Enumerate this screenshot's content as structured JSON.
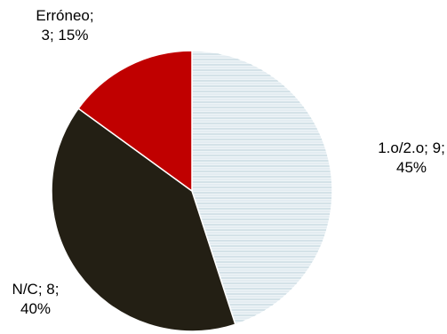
{
  "chart_data": {
    "type": "pie",
    "title": "",
    "start_angle_deg": 0,
    "direction": "clockwise",
    "slices": [
      {
        "category": "1.o/2.o",
        "value": 9,
        "percent": 45,
        "label_lines": [
          "1.o/2.o; 9;",
          "45%"
        ],
        "color": "#e6f0f4",
        "pattern": "horizontal-lines",
        "pattern_color": "#b9cfd8"
      },
      {
        "category": "N/C",
        "value": 8,
        "percent": 40,
        "label_lines": [
          "N/C; 8;",
          "40%"
        ],
        "color": "#231f14",
        "pattern": "none"
      },
      {
        "category": "Erróneo",
        "value": 3,
        "percent": 15,
        "label_lines": [
          "Erróneo;",
          "3; 15%"
        ],
        "color": "#c00000",
        "pattern": "none"
      }
    ],
    "legend": "none"
  }
}
